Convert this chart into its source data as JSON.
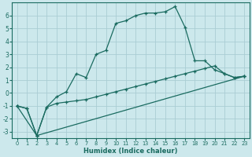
{
  "xlabel": "Humidex (Indice chaleur)",
  "bg_color": "#cce8ec",
  "line_color": "#1a6b60",
  "grid_color": "#aacdd4",
  "xlim": [
    -0.5,
    23.5
  ],
  "ylim": [
    -3.5,
    7.0
  ],
  "x_ticks": [
    0,
    1,
    2,
    3,
    4,
    5,
    6,
    7,
    8,
    9,
    10,
    11,
    12,
    13,
    14,
    15,
    16,
    17,
    18,
    19,
    20,
    21,
    22,
    23
  ],
  "y_ticks": [
    -3,
    -2,
    -1,
    0,
    1,
    2,
    3,
    4,
    5,
    6
  ],
  "line1_x": [
    0,
    1,
    2,
    3,
    4,
    5,
    6,
    7,
    8,
    9,
    10,
    11,
    12,
    13,
    14,
    15,
    16,
    17,
    18,
    19,
    20,
    21,
    22,
    23
  ],
  "line1_y": [
    -1.0,
    -1.2,
    -3.3,
    -1.1,
    -0.3,
    0.1,
    1.5,
    1.2,
    3.0,
    3.3,
    5.4,
    5.6,
    6.0,
    6.2,
    6.2,
    6.3,
    6.7,
    5.1,
    2.5,
    2.5,
    1.8,
    1.5,
    1.2,
    1.3
  ],
  "line2_x": [
    0,
    1,
    2,
    3,
    4,
    5,
    6,
    7,
    8,
    9,
    10,
    11,
    12,
    13,
    14,
    15,
    16,
    17,
    18,
    19,
    20,
    21,
    22,
    23
  ],
  "line2_y": [
    -1.0,
    -1.2,
    -3.3,
    -1.1,
    -0.8,
    -0.7,
    -0.6,
    -0.5,
    -0.3,
    -0.1,
    0.1,
    0.3,
    0.5,
    0.7,
    0.9,
    1.1,
    1.3,
    1.5,
    1.7,
    1.9,
    2.1,
    1.5,
    1.2,
    1.3
  ],
  "line3_x": [
    0,
    2,
    23
  ],
  "line3_y": [
    -1.0,
    -3.3,
    1.3
  ]
}
